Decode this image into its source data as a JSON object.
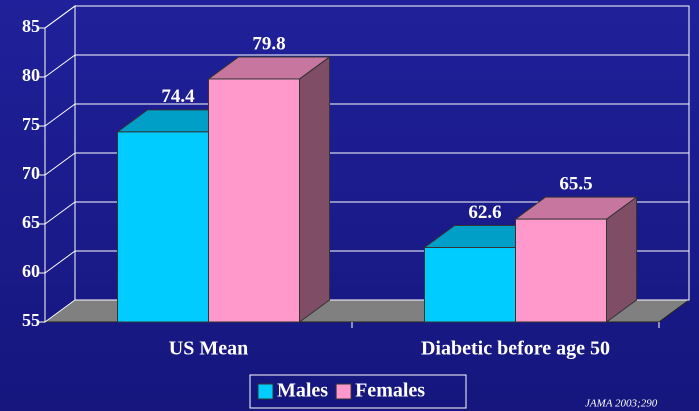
{
  "chart_data": {
    "type": "bar3d",
    "categories": [
      "US Mean",
      "Diabetic before age 50"
    ],
    "series": [
      {
        "name": "Males",
        "color": "#00ccff",
        "values": [
          74.4,
          62.6
        ]
      },
      {
        "name": "Females",
        "color": "#ff99cc",
        "values": [
          79.8,
          65.5
        ]
      }
    ],
    "ylim": [
      55,
      85
    ],
    "yticks": [
      55,
      60,
      65,
      70,
      75,
      80,
      85
    ],
    "grid": true,
    "legend": "bottom",
    "annotation": "JAMA 2003;290"
  }
}
